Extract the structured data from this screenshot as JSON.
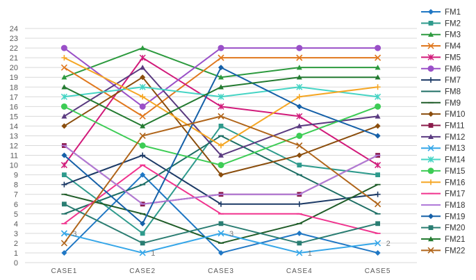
{
  "chart_data": {
    "type": "line",
    "title": "",
    "xlabel": "",
    "ylabel": "",
    "categories": [
      "CASE1",
      "CASE2",
      "CASE3",
      "CASE4",
      "CASE5"
    ],
    "ylim": [
      0,
      24
    ],
    "yticks": [
      0,
      1,
      2,
      3,
      4,
      5,
      6,
      7,
      8,
      9,
      10,
      11,
      12,
      13,
      14,
      15,
      16,
      17,
      18,
      19,
      20,
      21,
      22,
      23,
      24
    ],
    "grid": true,
    "legend_position": "right",
    "series": [
      {
        "name": "FM1",
        "color": "#1f77c4",
        "marker": "diamond",
        "values": [
          1,
          9,
          1,
          3,
          1
        ]
      },
      {
        "name": "FM2",
        "color": "#2e9a8c",
        "marker": "square",
        "values": [
          9,
          3,
          14,
          10,
          9
        ]
      },
      {
        "name": "FM3",
        "color": "#2c9a3e",
        "marker": "triangle",
        "values": [
          19,
          22,
          19,
          20,
          20
        ]
      },
      {
        "name": "FM4",
        "color": "#e0781e",
        "marker": "x",
        "values": [
          20,
          15,
          21,
          21,
          21
        ]
      },
      {
        "name": "FM5",
        "color": "#d11a7a",
        "marker": "star",
        "values": [
          10,
          21,
          16,
          15,
          10
        ]
      },
      {
        "name": "FM6",
        "color": "#9a50c8",
        "marker": "circle",
        "values": [
          22,
          16,
          22,
          22,
          22
        ]
      },
      {
        "name": "FM7",
        "color": "#1c3a66",
        "marker": "plus",
        "values": [
          8,
          11,
          6,
          6,
          7
        ]
      },
      {
        "name": "FM8",
        "color": "#1d6e64",
        "marker": "dash",
        "values": [
          5,
          8,
          13,
          9,
          5
        ]
      },
      {
        "name": "FM9",
        "color": "#1f5c28",
        "marker": "dash",
        "values": [
          7,
          5,
          2,
          4,
          8
        ]
      },
      {
        "name": "FM10",
        "color": "#8a4d0c",
        "marker": "diamond",
        "values": [
          14,
          19,
          9,
          11,
          14
        ]
      },
      {
        "name": "FM11",
        "color": "#8a1a4a",
        "marker": "square",
        "values": [
          12,
          6,
          7,
          7,
          11
        ]
      },
      {
        "name": "FM12",
        "color": "#5a3a80",
        "marker": "triangle",
        "values": [
          15,
          20,
          11,
          14,
          15
        ]
      },
      {
        "name": "FM13",
        "color": "#35a6e8",
        "marker": "x",
        "values": [
          3,
          1,
          3,
          1,
          2
        ]
      },
      {
        "name": "FM14",
        "color": "#45d4c4",
        "marker": "star",
        "values": [
          17,
          18,
          17,
          18,
          17
        ]
      },
      {
        "name": "FM15",
        "color": "#3dcc55",
        "marker": "circle",
        "values": [
          16,
          12,
          10,
          13,
          16
        ]
      },
      {
        "name": "FM16",
        "color": "#f5a623",
        "marker": "plus",
        "values": [
          21,
          17,
          12,
          17,
          18
        ]
      },
      {
        "name": "FM17",
        "color": "#f0338e",
        "marker": "dash",
        "values": [
          4,
          10,
          5,
          5,
          3
        ]
      },
      {
        "name": "FM18",
        "color": "#b07ad8",
        "marker": "dash",
        "values": [
          12,
          6,
          7,
          7,
          11
        ]
      },
      {
        "name": "FM19",
        "color": "#1560a8",
        "marker": "diamond",
        "values": [
          11,
          4,
          20,
          16,
          13
        ]
      },
      {
        "name": "FM20",
        "color": "#2a7d72",
        "marker": "square",
        "values": [
          6,
          2,
          4,
          2,
          4
        ]
      },
      {
        "name": "FM21",
        "color": "#237a30",
        "marker": "triangle",
        "values": [
          18,
          14,
          18,
          19,
          19
        ]
      },
      {
        "name": "FM22",
        "color": "#b0651a",
        "marker": "x",
        "values": [
          2,
          13,
          15,
          12,
          6
        ]
      }
    ],
    "annotations": [
      {
        "category": "CASE1",
        "y": 3,
        "text": "3"
      },
      {
        "category": "CASE2",
        "y": 1,
        "text": "1"
      },
      {
        "category": "CASE3",
        "y": 3,
        "text": "3"
      },
      {
        "category": "CASE4",
        "y": 1,
        "text": "1"
      },
      {
        "category": "CASE5",
        "y": 2,
        "text": "2"
      }
    ]
  }
}
